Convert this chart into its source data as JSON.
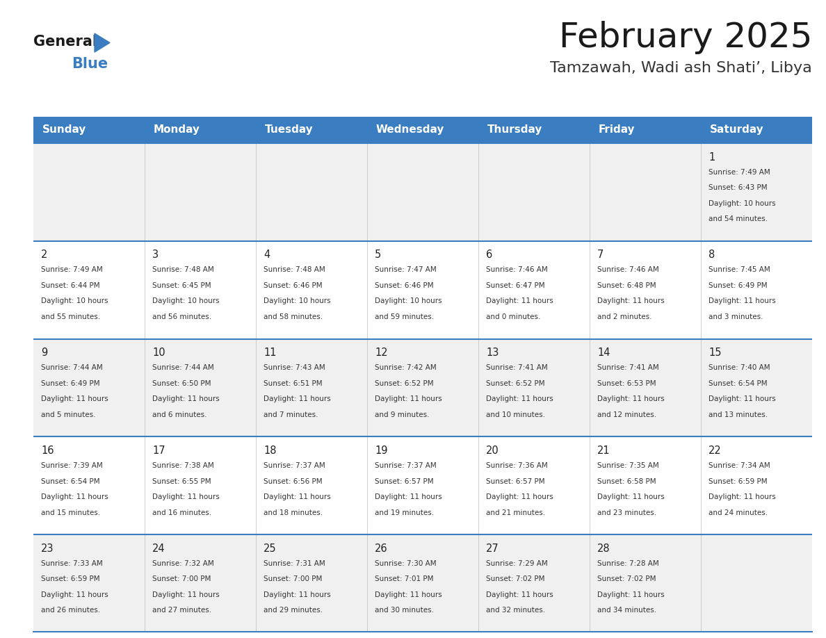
{
  "title": "February 2025",
  "subtitle": "Tamzawah, Wadi ash Shati’, Libya",
  "header_bg_color": "#3A7EC1",
  "header_text_color": "#FFFFFF",
  "days_of_week": [
    "Sunday",
    "Monday",
    "Tuesday",
    "Wednesday",
    "Thursday",
    "Friday",
    "Saturday"
  ],
  "row_bg_even": "#F0F0F0",
  "row_bg_odd": "#FFFFFF",
  "cell_text_color": "#333333",
  "day_num_color": "#222222",
  "grid_line_color": "#3A7EC1",
  "title_color": "#1A1A1A",
  "subtitle_color": "#333333",
  "calendar": [
    [
      {
        "day": null,
        "sunrise": null,
        "sunset": null,
        "daylight": null
      },
      {
        "day": null,
        "sunrise": null,
        "sunset": null,
        "daylight": null
      },
      {
        "day": null,
        "sunrise": null,
        "sunset": null,
        "daylight": null
      },
      {
        "day": null,
        "sunrise": null,
        "sunset": null,
        "daylight": null
      },
      {
        "day": null,
        "sunrise": null,
        "sunset": null,
        "daylight": null
      },
      {
        "day": null,
        "sunrise": null,
        "sunset": null,
        "daylight": null
      },
      {
        "day": 1,
        "sunrise": "7:49 AM",
        "sunset": "6:43 PM",
        "daylight": "10 hours\nand 54 minutes."
      }
    ],
    [
      {
        "day": 2,
        "sunrise": "7:49 AM",
        "sunset": "6:44 PM",
        "daylight": "10 hours\nand 55 minutes."
      },
      {
        "day": 3,
        "sunrise": "7:48 AM",
        "sunset": "6:45 PM",
        "daylight": "10 hours\nand 56 minutes."
      },
      {
        "day": 4,
        "sunrise": "7:48 AM",
        "sunset": "6:46 PM",
        "daylight": "10 hours\nand 58 minutes."
      },
      {
        "day": 5,
        "sunrise": "7:47 AM",
        "sunset": "6:46 PM",
        "daylight": "10 hours\nand 59 minutes."
      },
      {
        "day": 6,
        "sunrise": "7:46 AM",
        "sunset": "6:47 PM",
        "daylight": "11 hours\nand 0 minutes."
      },
      {
        "day": 7,
        "sunrise": "7:46 AM",
        "sunset": "6:48 PM",
        "daylight": "11 hours\nand 2 minutes."
      },
      {
        "day": 8,
        "sunrise": "7:45 AM",
        "sunset": "6:49 PM",
        "daylight": "11 hours\nand 3 minutes."
      }
    ],
    [
      {
        "day": 9,
        "sunrise": "7:44 AM",
        "sunset": "6:49 PM",
        "daylight": "11 hours\nand 5 minutes."
      },
      {
        "day": 10,
        "sunrise": "7:44 AM",
        "sunset": "6:50 PM",
        "daylight": "11 hours\nand 6 minutes."
      },
      {
        "day": 11,
        "sunrise": "7:43 AM",
        "sunset": "6:51 PM",
        "daylight": "11 hours\nand 7 minutes."
      },
      {
        "day": 12,
        "sunrise": "7:42 AM",
        "sunset": "6:52 PM",
        "daylight": "11 hours\nand 9 minutes."
      },
      {
        "day": 13,
        "sunrise": "7:41 AM",
        "sunset": "6:52 PM",
        "daylight": "11 hours\nand 10 minutes."
      },
      {
        "day": 14,
        "sunrise": "7:41 AM",
        "sunset": "6:53 PM",
        "daylight": "11 hours\nand 12 minutes."
      },
      {
        "day": 15,
        "sunrise": "7:40 AM",
        "sunset": "6:54 PM",
        "daylight": "11 hours\nand 13 minutes."
      }
    ],
    [
      {
        "day": 16,
        "sunrise": "7:39 AM",
        "sunset": "6:54 PM",
        "daylight": "11 hours\nand 15 minutes."
      },
      {
        "day": 17,
        "sunrise": "7:38 AM",
        "sunset": "6:55 PM",
        "daylight": "11 hours\nand 16 minutes."
      },
      {
        "day": 18,
        "sunrise": "7:37 AM",
        "sunset": "6:56 PM",
        "daylight": "11 hours\nand 18 minutes."
      },
      {
        "day": 19,
        "sunrise": "7:37 AM",
        "sunset": "6:57 PM",
        "daylight": "11 hours\nand 19 minutes."
      },
      {
        "day": 20,
        "sunrise": "7:36 AM",
        "sunset": "6:57 PM",
        "daylight": "11 hours\nand 21 minutes."
      },
      {
        "day": 21,
        "sunrise": "7:35 AM",
        "sunset": "6:58 PM",
        "daylight": "11 hours\nand 23 minutes."
      },
      {
        "day": 22,
        "sunrise": "7:34 AM",
        "sunset": "6:59 PM",
        "daylight": "11 hours\nand 24 minutes."
      }
    ],
    [
      {
        "day": 23,
        "sunrise": "7:33 AM",
        "sunset": "6:59 PM",
        "daylight": "11 hours\nand 26 minutes."
      },
      {
        "day": 24,
        "sunrise": "7:32 AM",
        "sunset": "7:00 PM",
        "daylight": "11 hours\nand 27 minutes."
      },
      {
        "day": 25,
        "sunrise": "7:31 AM",
        "sunset": "7:00 PM",
        "daylight": "11 hours\nand 29 minutes."
      },
      {
        "day": 26,
        "sunrise": "7:30 AM",
        "sunset": "7:01 PM",
        "daylight": "11 hours\nand 30 minutes."
      },
      {
        "day": 27,
        "sunrise": "7:29 AM",
        "sunset": "7:02 PM",
        "daylight": "11 hours\nand 32 minutes."
      },
      {
        "day": 28,
        "sunrise": "7:28 AM",
        "sunset": "7:02 PM",
        "daylight": "11 hours\nand 34 minutes."
      },
      {
        "day": null,
        "sunrise": null,
        "sunset": null,
        "daylight": null
      }
    ]
  ]
}
